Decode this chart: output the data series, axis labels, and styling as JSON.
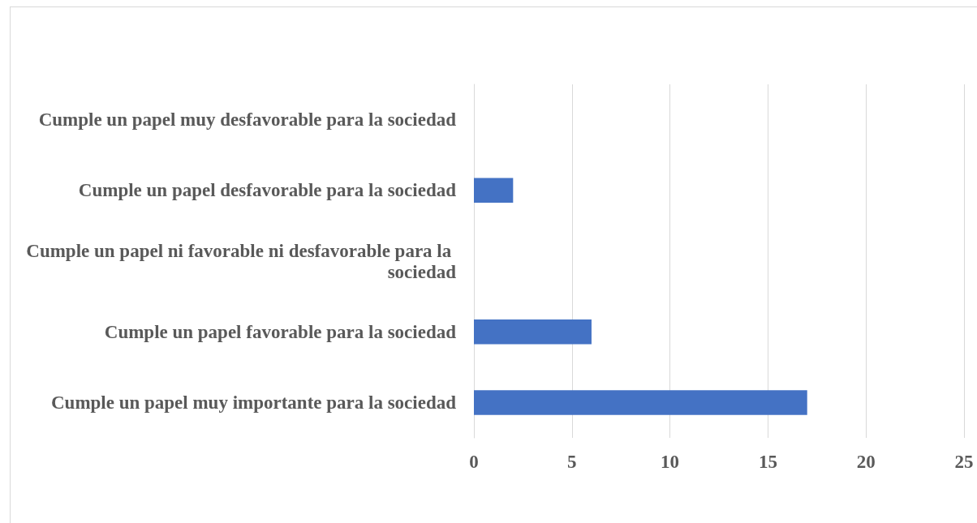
{
  "chart_data": {
    "type": "bar",
    "orientation": "horizontal",
    "categories": [
      "Cumple un papel muy desfavorable para la sociedad",
      "Cumple un papel desfavorable para la sociedad",
      "Cumple un papel ni favorable ni desfavorable para la sociedad",
      "Cumple un papel favorable para la sociedad",
      "Cumple un papel muy importante para la sociedad"
    ],
    "values": [
      0,
      2,
      0,
      6,
      17
    ],
    "color": "#4472c4",
    "xlim": [
      0,
      25
    ],
    "xticks": [
      0,
      5,
      10,
      15,
      20,
      25
    ],
    "grid": "x"
  }
}
